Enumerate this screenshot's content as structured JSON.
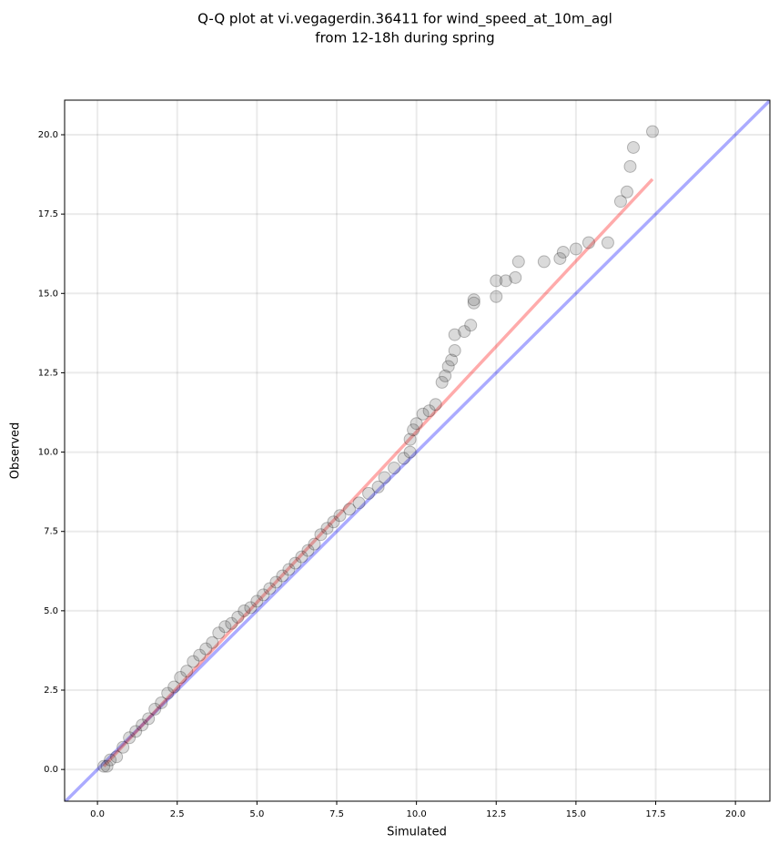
{
  "chart_data": {
    "type": "scatter",
    "title": [
      "Q-Q plot at vi.vegagerdin.36411 for wind_speed_at_10m_agl",
      "from 12-18h during spring"
    ],
    "xlabel": "Simulated",
    "ylabel": "Observed",
    "xlim": [
      -1.03,
      21.08
    ],
    "ylim": [
      -1.0,
      21.09
    ],
    "xticks": [
      {
        "value": 0,
        "label": "0.0"
      },
      2.5,
      {
        "value": 5,
        "label": "5.0"
      },
      7.5,
      {
        "value": 10,
        "label": "10.0"
      },
      12.5,
      {
        "value": 15,
        "label": "15.0"
      },
      17.5,
      {
        "value": 20,
        "label": "20.0"
      }
    ],
    "yticks": [
      {
        "value": 0,
        "label": "0.0"
      },
      2.5,
      {
        "value": 5,
        "label": "5.0"
      },
      7.5,
      {
        "value": 10,
        "label": "10.0"
      },
      12.5,
      {
        "value": 15,
        "label": "15.0"
      },
      17.5,
      {
        "value": 20,
        "label": "20.0"
      }
    ],
    "grid": true,
    "series": [
      {
        "color": "#555555",
        "x": [
          0.2,
          0.3,
          0.4,
          0.6,
          0.8,
          1.0,
          1.2,
          1.4,
          1.6,
          1.8,
          2.0,
          2.2,
          2.4,
          2.6,
          2.8,
          3.0,
          3.2,
          3.4,
          3.6,
          3.8,
          4.0,
          4.2,
          4.4,
          4.6,
          4.8,
          5.0,
          5.2,
          5.4,
          5.6,
          5.8,
          6.0,
          6.2,
          6.4,
          6.6,
          6.8,
          7.0,
          7.2,
          7.4,
          7.6,
          7.9,
          8.2,
          8.5,
          8.8,
          9.0,
          9.3,
          9.6,
          9.8,
          9.8,
          9.9,
          10.0,
          10.2,
          10.4,
          10.6,
          10.8,
          10.9,
          11.0,
          11.1,
          11.2,
          11.2,
          11.5,
          11.7,
          11.8,
          11.8,
          12.5,
          12.5,
          12.8,
          13.1,
          13.2,
          14.0,
          14.5,
          14.6,
          15.0,
          15.4,
          16.0,
          16.4,
          16.6,
          16.7,
          16.8,
          17.4
        ],
        "values": [
          0.1,
          0.1,
          0.3,
          0.4,
          0.7,
          1.0,
          1.2,
          1.4,
          1.6,
          1.9,
          2.1,
          2.4,
          2.6,
          2.9,
          3.1,
          3.4,
          3.6,
          3.8,
          4.0,
          4.3,
          4.5,
          4.6,
          4.8,
          5.0,
          5.1,
          5.3,
          5.5,
          5.7,
          5.9,
          6.1,
          6.3,
          6.5,
          6.7,
          6.9,
          7.1,
          7.4,
          7.6,
          7.8,
          8.0,
          8.2,
          8.4,
          8.7,
          8.9,
          9.2,
          9.5,
          9.8,
          10.0,
          10.4,
          10.7,
          10.9,
          11.2,
          11.3,
          11.5,
          12.2,
          12.4,
          12.7,
          12.9,
          13.2,
          13.7,
          13.8,
          14.0,
          14.7,
          14.8,
          14.9,
          15.4,
          15.4,
          15.5,
          16.0,
          16.0,
          16.1,
          16.3,
          16.4,
          16.6,
          16.6,
          17.9,
          18.2,
          19.0,
          19.6,
          20.1
        ]
      }
    ],
    "lines": [
      {
        "color": "#0000ff",
        "x": [
          -1.03,
          21.08
        ],
        "y": [
          -1.03,
          21.08
        ]
      },
      {
        "color": "#ff0000",
        "x": [
          0.2,
          17.4
        ],
        "y": [
          0.1,
          18.6
        ]
      }
    ]
  }
}
